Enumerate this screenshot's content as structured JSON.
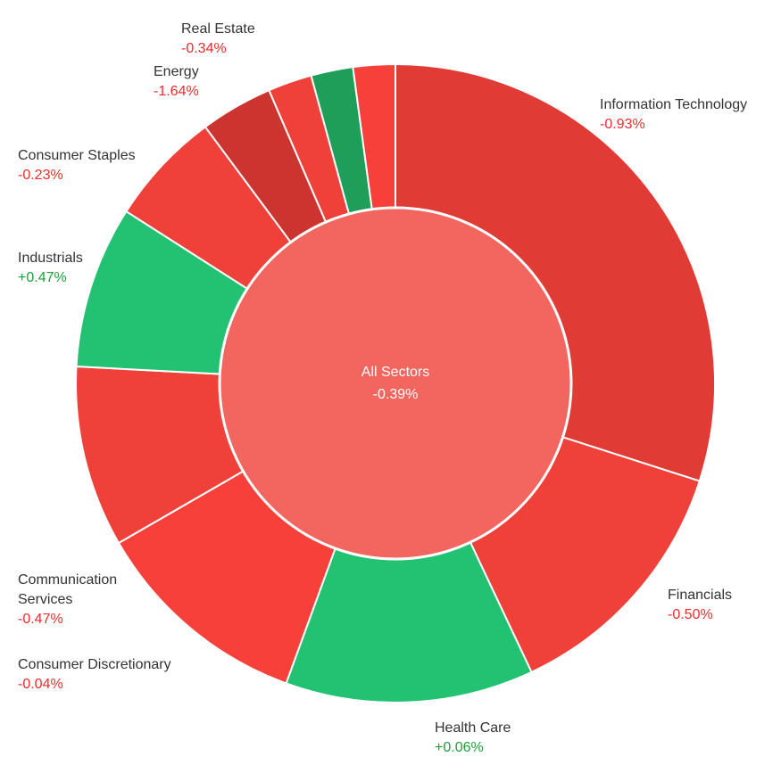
{
  "colors": {
    "strong_red": "#e03c35",
    "red": "#f0403a",
    "bright_red": "#f7403a",
    "dark_red": "#cc342f",
    "green": "#23c272",
    "dark_green": "#1f9e5a",
    "center": "#f36660",
    "negative_text": "#ef2b2b",
    "positive_text": "#1f9d3c"
  },
  "chart_data": {
    "type": "pie",
    "center": {
      "label": "All Sectors",
      "change": "-0.39%"
    },
    "slices": [
      {
        "name": "Information Technology",
        "change": "-0.93%",
        "weight": 31.0,
        "color": "#e03c35"
      },
      {
        "name": "Financials",
        "change": "-0.50%",
        "weight": 13.5,
        "color": "#f0403a"
      },
      {
        "name": "Health Care",
        "change": "+0.06%",
        "weight": 13.0,
        "color": "#23c272"
      },
      {
        "name": "Consumer Discretionary",
        "change": "-0.04%",
        "weight": 11.5,
        "color": "#f7403a"
      },
      {
        "name": "Communication Services",
        "change": "-0.47%",
        "weight": 9.5,
        "color": "#f0403a"
      },
      {
        "name": "Industrials",
        "change": "+0.47%",
        "weight": 8.5,
        "color": "#23c272"
      },
      {
        "name": "Consumer Staples",
        "change": "-0.23%",
        "weight": 6.0,
        "color": "#f0403a"
      },
      {
        "name": "Energy",
        "change": "-1.64%",
        "weight": 3.8,
        "color": "#cc342f"
      },
      {
        "name": "",
        "change": "",
        "weight": 2.3,
        "color": "#f0403a"
      },
      {
        "name": "",
        "change": "",
        "weight": 2.2,
        "color": "#1f9e5a"
      },
      {
        "name": "Real Estate",
        "change": "-0.34%",
        "weight": 2.2,
        "color": "#f7403a"
      }
    ]
  }
}
